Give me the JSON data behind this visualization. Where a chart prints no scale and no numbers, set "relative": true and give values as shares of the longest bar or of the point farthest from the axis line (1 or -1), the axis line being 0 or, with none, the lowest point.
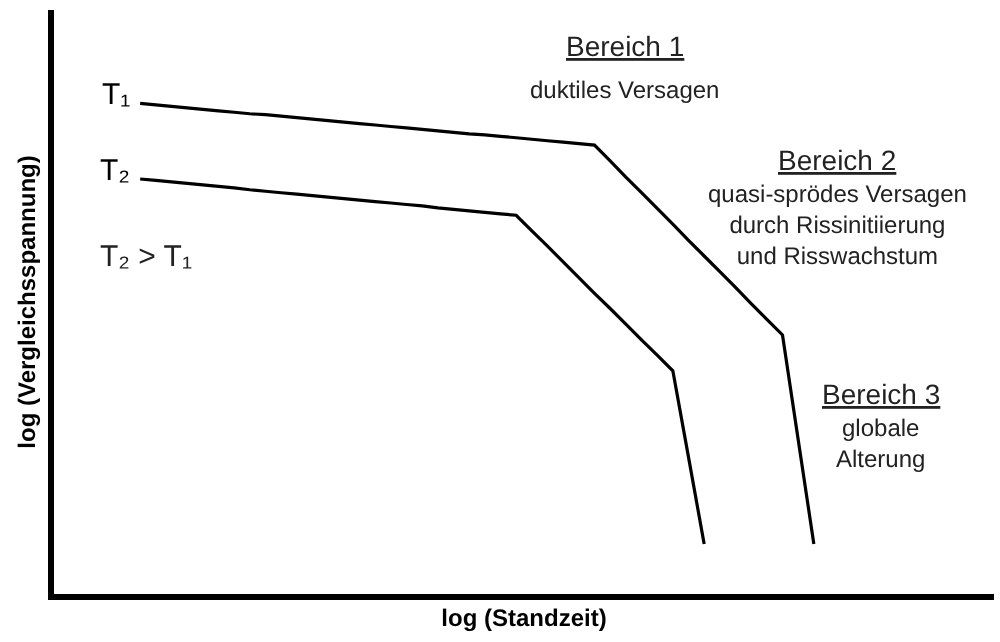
{
  "chart_data": {
    "type": "line",
    "relative": true,
    "xlabel": "log (Standzeit)",
    "ylabel": "log (Vergleichsspannung)",
    "categories": [
      null,
      null,
      null,
      null,
      null,
      null,
      null,
      null,
      null,
      null,
      null,
      null,
      null,
      null,
      null,
      null,
      null,
      null,
      null,
      null,
      null,
      null,
      null,
      null,
      null,
      null,
      null,
      null,
      null,
      null,
      null,
      null,
      null,
      null,
      null,
      null,
      null,
      null,
      null,
      null,
      null,
      null,
      null,
      null,
      null,
      null,
      null,
      null,
      null,
      null,
      null,
      null,
      null,
      null,
      null,
      null,
      null,
      null,
      null,
      null
    ],
    "series": [
      {
        "name": "T₁",
        "color": "#000000",
        "values": [
          null,
          null,
          null,
          null,
          null,
          1.0,
          0.997,
          0.994,
          0.991,
          0.988,
          0.985,
          0.982,
          0.979,
          0.977,
          0.974,
          0.971,
          0.968,
          0.965,
          0.962,
          0.959,
          0.956,
          0.953,
          0.95,
          0.947,
          0.944,
          0.941,
          0.938,
          0.936,
          0.933,
          0.93,
          0.927,
          0.924,
          0.921,
          0.918,
          0.915,
          0.883,
          0.85,
          0.818,
          0.786,
          0.754,
          0.721,
          0.689,
          0.657,
          0.625,
          0.592,
          0.56,
          0.528,
          0.315,
          0.102,
          null,
          null,
          null,
          null,
          null,
          null,
          null,
          null,
          null,
          null,
          null
        ]
      },
      {
        "name": "T₂",
        "color": "#000000",
        "values": [
          null,
          null,
          null,
          null,
          null,
          0.846,
          0.843,
          0.84,
          0.837,
          0.834,
          0.831,
          0.828,
          0.824,
          0.821,
          0.818,
          0.815,
          0.812,
          0.809,
          0.806,
          0.803,
          0.8,
          0.797,
          0.794,
          0.791,
          0.787,
          0.784,
          0.781,
          0.778,
          0.775,
          0.772,
          0.74,
          0.709,
          0.677,
          0.645,
          0.613,
          0.582,
          0.55,
          0.518,
          0.487,
          0.455,
          0.279,
          0.102,
          null,
          null,
          null,
          null,
          null,
          null,
          null,
          null,
          null,
          null,
          null,
          null,
          null,
          null,
          null,
          null,
          null,
          null
        ]
      }
    ],
    "annotations": [
      "Bereich 1",
      "duktiles Versagen",
      "Bereich 2",
      "quasi-sprödes Versagen\ndurch Rissinitiierung\nund Risswachstum",
      "Bereich 3",
      "globale\nAlterung",
      "T₂ > T₁"
    ]
  }
}
